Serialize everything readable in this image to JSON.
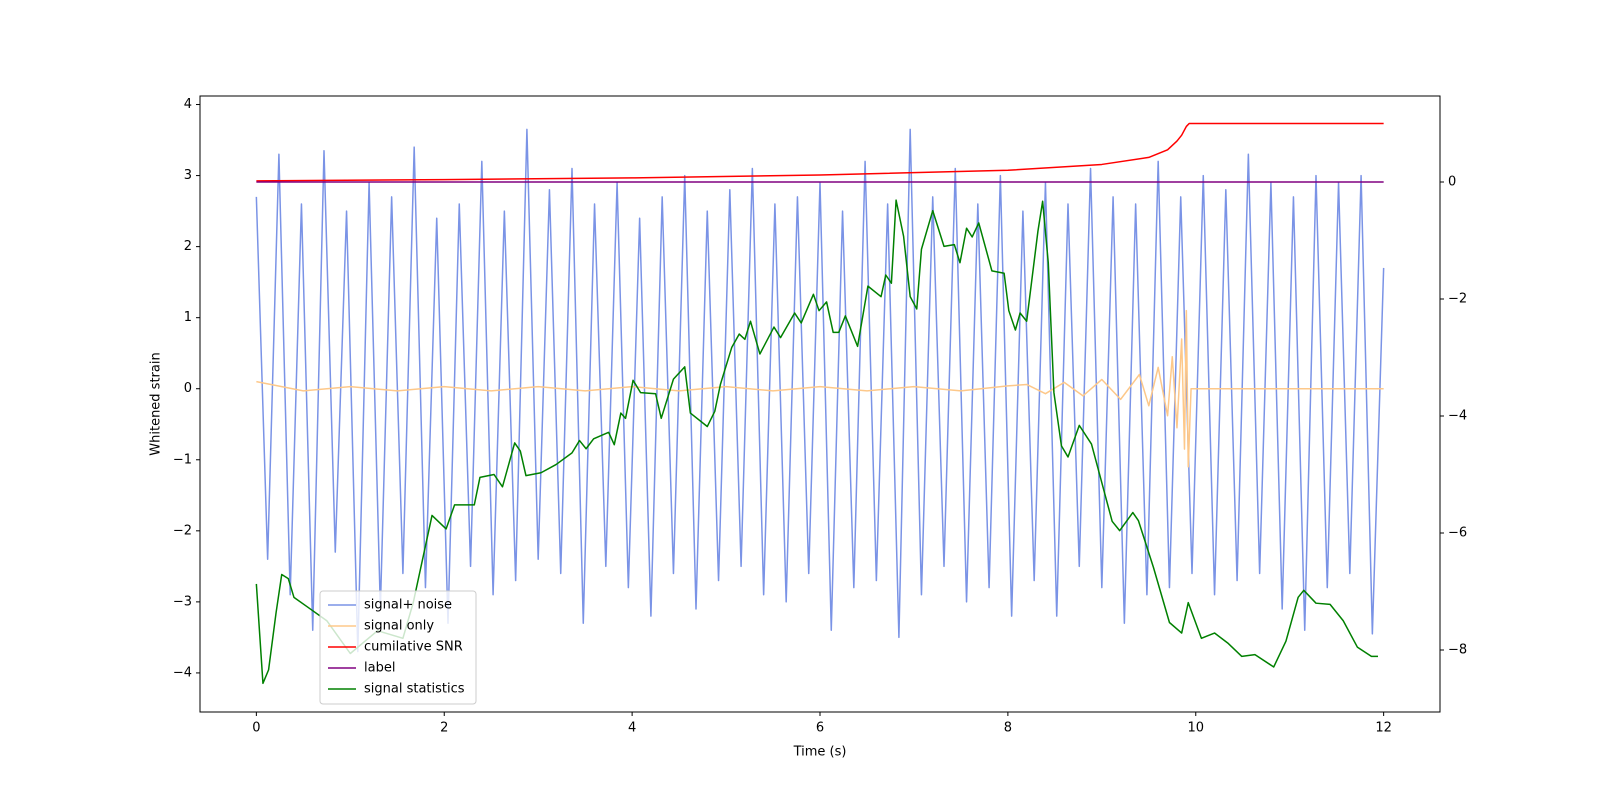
{
  "chart_data": {
    "type": "line",
    "xlabel": "Time (s)",
    "ylabel": "Whitened strain",
    "xlim": [
      -0.6,
      12.6
    ],
    "ylim": [
      -4.55,
      4.12
    ],
    "y2lim": [
      -9.06,
      1.47
    ],
    "xticks": [
      0,
      2,
      4,
      6,
      8,
      10,
      12
    ],
    "yticks": [
      {
        "value": -4,
        "label": "−4"
      },
      {
        "value": -3,
        "label": "−3"
      },
      {
        "value": -2,
        "label": "−2"
      },
      {
        "value": -1,
        "label": "−1"
      },
      0,
      1,
      2,
      3,
      4
    ],
    "y2ticks": [
      {
        "value": -8,
        "label": "−8"
      },
      {
        "value": -6,
        "label": "−6"
      },
      {
        "value": -4,
        "label": "−4"
      },
      {
        "value": -2,
        "label": "−2"
      },
      0
    ],
    "grid": false,
    "legend_loc": "lower left",
    "series": [
      {
        "name": "signal+ noise",
        "color": "#7a93e6",
        "x": [
          0,
          0.12,
          0.24,
          0.36,
          0.48,
          0.6,
          0.72,
          0.84,
          0.96,
          1.08,
          1.2,
          1.32,
          1.44,
          1.56,
          1.68,
          1.8,
          1.92,
          2.04,
          2.16,
          2.28,
          2.4,
          2.52,
          2.64,
          2.76,
          2.88,
          3,
          3.12,
          3.24,
          3.36,
          3.48,
          3.6,
          3.72,
          3.84,
          3.96,
          4.08,
          4.2,
          4.32,
          4.44,
          4.56,
          4.68,
          4.8,
          4.92,
          5.04,
          5.16,
          5.28,
          5.4,
          5.52,
          5.64,
          5.76,
          5.88,
          6,
          6.12,
          6.24,
          6.36,
          6.48,
          6.6,
          6.72,
          6.84,
          6.96,
          7.08,
          7.2,
          7.32,
          7.44,
          7.56,
          7.68,
          7.8,
          7.92,
          8.04,
          8.16,
          8.28,
          8.4,
          8.52,
          8.64,
          8.76,
          8.88,
          9,
          9.12,
          9.24,
          9.36,
          9.48,
          9.6,
          9.72,
          9.84,
          9.96,
          10.08,
          10.2,
          10.32,
          10.44,
          10.56,
          10.68,
          10.8,
          10.92,
          11.04,
          11.16,
          11.28,
          11.4,
          11.52,
          11.64,
          11.76,
          11.88,
          12
        ],
        "values": [
          2.7,
          -2.4,
          3.3,
          -2.9,
          2.6,
          -3.4,
          3.35,
          -2.3,
          2.5,
          -3.7,
          2.9,
          -3.1,
          2.7,
          -2.6,
          3.4,
          -2.8,
          2.4,
          -3.3,
          2.6,
          -2.5,
          3.2,
          -2.9,
          2.5,
          -2.7,
          3.65,
          -2.4,
          2.8,
          -2.6,
          3.1,
          -3.3,
          2.6,
          -2.5,
          2.9,
          -2.8,
          2.4,
          -3.2,
          2.7,
          -2.6,
          3.0,
          -3.1,
          2.5,
          -2.7,
          2.8,
          -2.5,
          3.1,
          -2.9,
          2.6,
          -3.0,
          2.7,
          -2.6,
          2.9,
          -3.4,
          2.5,
          -2.8,
          3.2,
          -2.7,
          2.6,
          -3.5,
          3.65,
          -2.9,
          2.7,
          -2.5,
          3.1,
          -3.0,
          2.6,
          -2.8,
          3.0,
          -3.2,
          2.5,
          -2.7,
          2.9,
          -3.2,
          2.6,
          -2.5,
          3.1,
          -2.8,
          2.7,
          -3.3,
          2.6,
          -2.9,
          3.2,
          -2.8,
          2.7,
          -2.6,
          3.0,
          -2.9,
          2.8,
          -2.7,
          3.3,
          -2.6,
          2.9,
          -3.1,
          2.7,
          -3.4,
          3.0,
          -2.8,
          2.9,
          -2.6,
          3.0,
          -3.45,
          1.7
        ]
      },
      {
        "name": "signal only",
        "color": "#fdc88a",
        "x": [
          0,
          0.5,
          1,
          1.5,
          2,
          2.5,
          3,
          3.5,
          4,
          4.5,
          5,
          5.5,
          6,
          6.5,
          7,
          7.5,
          8,
          8.2,
          8.4,
          8.6,
          8.8,
          9,
          9.2,
          9.4,
          9.5,
          9.6,
          9.7,
          9.75,
          9.8,
          9.85,
          9.88,
          9.9,
          9.92,
          9.95,
          12
        ],
        "values": [
          0.1,
          -0.03,
          0.03,
          -0.03,
          0.03,
          -0.03,
          0.03,
          -0.03,
          0.03,
          -0.03,
          0.03,
          -0.03,
          0.03,
          -0.03,
          0.03,
          -0.03,
          0.04,
          0.06,
          -0.07,
          0.09,
          -0.1,
          0.13,
          -0.15,
          0.2,
          -0.24,
          0.3,
          -0.38,
          0.45,
          -0.55,
          0.7,
          -0.85,
          1.1,
          -1.1,
          0,
          0
        ]
      },
      {
        "name": "cumilative SNR",
        "color": "#ff0000",
        "axis": "y2",
        "x": [
          0,
          2,
          4,
          6,
          8,
          9,
          9.5,
          9.7,
          9.8,
          9.85,
          9.9,
          9.93,
          12
        ],
        "values": [
          0.02,
          0.04,
          0.07,
          0.12,
          0.2,
          0.3,
          0.42,
          0.55,
          0.7,
          0.8,
          0.95,
          1.0,
          1.0
        ]
      },
      {
        "name": "label",
        "color": "#800080",
        "axis": "y2",
        "x": [
          0,
          12
        ],
        "values": [
          0,
          0
        ]
      },
      {
        "name": "signal statistics",
        "color": "#008000",
        "axis": "y2",
        "x": [
          0,
          0.07,
          0.13,
          0.21,
          0.27,
          0.34,
          0.4,
          0.54,
          0.75,
          1,
          1.29,
          1.56,
          1.67,
          1.87,
          2.02,
          2.11,
          2.32,
          2.38,
          2.53,
          2.62,
          2.75,
          2.81,
          2.87,
          3.03,
          3.19,
          3.36,
          3.44,
          3.51,
          3.59,
          3.75,
          3.81,
          3.88,
          3.93,
          4.01,
          4.09,
          4.25,
          4.31,
          4.44,
          4.56,
          4.62,
          4.8,
          4.88,
          4.94,
          5.06,
          5.14,
          5.2,
          5.26,
          5.36,
          5.51,
          5.58,
          5.73,
          5.8,
          5.93,
          5.99,
          6.07,
          6.14,
          6.2,
          6.27,
          6.4,
          6.51,
          6.65,
          6.7,
          6.76,
          6.81,
          6.89,
          6.96,
          7.03,
          7.08,
          7.2,
          7.32,
          7.43,
          7.49,
          7.56,
          7.62,
          7.69,
          7.83,
          7.96,
          8.01,
          8.08,
          8.13,
          8.2,
          8.32,
          8.37,
          8.43,
          8.49,
          8.57,
          8.64,
          8.76,
          8.89,
          9,
          9.11,
          9.19,
          9.33,
          9.39,
          9.55,
          9.72,
          9.85,
          9.92,
          10.06,
          10.2,
          10.34,
          10.49,
          10.63,
          10.83,
          10.96,
          11.09,
          11.15,
          11.28,
          11.43,
          11.57,
          11.72,
          11.87,
          11.94
        ],
        "values": [
          -6.87,
          -8.57,
          -8.34,
          -7.36,
          -6.71,
          -6.78,
          -7.1,
          -7.26,
          -7.5,
          -8.06,
          -7.67,
          -7.8,
          -7.19,
          -5.7,
          -5.93,
          -5.52,
          -5.52,
          -5.05,
          -5.0,
          -5.21,
          -4.46,
          -4.6,
          -5.02,
          -4.97,
          -4.83,
          -4.63,
          -4.42,
          -4.56,
          -4.39,
          -4.28,
          -4.49,
          -3.95,
          -4.04,
          -3.39,
          -3.6,
          -3.62,
          -4.04,
          -3.37,
          -3.16,
          -3.95,
          -4.18,
          -3.92,
          -3.46,
          -2.83,
          -2.6,
          -2.69,
          -2.38,
          -2.94,
          -2.48,
          -2.66,
          -2.24,
          -2.41,
          -1.92,
          -2.2,
          -2.05,
          -2.57,
          -2.57,
          -2.29,
          -2.81,
          -1.78,
          -1.96,
          -1.59,
          -1.73,
          -0.31,
          -0.93,
          -1.96,
          -2.17,
          -1.15,
          -0.49,
          -1.1,
          -1.07,
          -1.38,
          -0.79,
          -0.94,
          -0.7,
          -1.52,
          -1.56,
          -2.2,
          -2.53,
          -2.24,
          -2.38,
          -0.84,
          -0.33,
          -1.38,
          -3.6,
          -4.51,
          -4.7,
          -4.16,
          -4.48,
          -5.14,
          -5.8,
          -5.96,
          -5.65,
          -5.79,
          -6.59,
          -7.53,
          -7.71,
          -7.19,
          -7.8,
          -7.71,
          -7.88,
          -8.11,
          -8.08,
          -8.29,
          -7.85,
          -7.1,
          -6.98,
          -7.2,
          -7.22,
          -7.5,
          -7.95,
          -8.11,
          -8.11
        ]
      }
    ]
  }
}
